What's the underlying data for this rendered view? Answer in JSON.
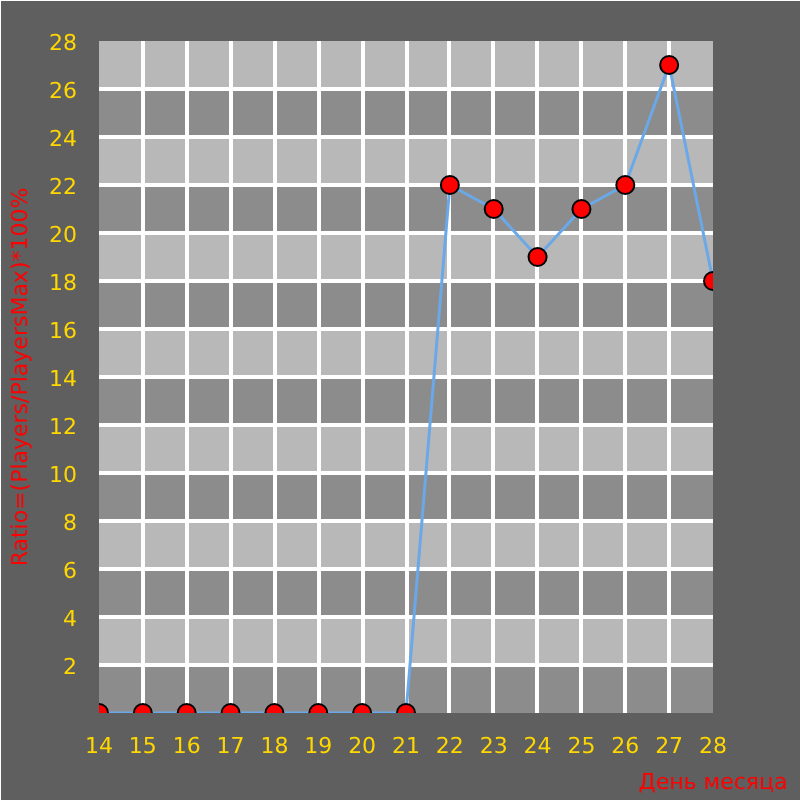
{
  "chart_data": {
    "type": "line",
    "xlabel": "День месяца",
    "ylabel": "Ratio=(Players/PlayersMax)*100%",
    "x": [
      14,
      15,
      16,
      17,
      18,
      19,
      20,
      21,
      22,
      23,
      24,
      25,
      26,
      27,
      28
    ],
    "series": [
      {
        "color": "#6aa8e8",
        "values": [
          0,
          0,
          0,
          0,
          0,
          0,
          0,
          0,
          22,
          21,
          19,
          21,
          22,
          27,
          18
        ]
      }
    ],
    "marker": "circle",
    "line_style": "solid",
    "grid": true,
    "xlim": [
      14,
      28
    ],
    "ylim": [
      0,
      28
    ],
    "xticks": [
      14,
      15,
      16,
      17,
      18,
      19,
      20,
      21,
      22,
      23,
      24,
      25,
      26,
      27,
      28
    ],
    "yticks": [
      {
        "value": 0,
        "label": null
      },
      2,
      4,
      6,
      8,
      10,
      12,
      14,
      16,
      18,
      20,
      22,
      24,
      26,
      28
    ]
  }
}
